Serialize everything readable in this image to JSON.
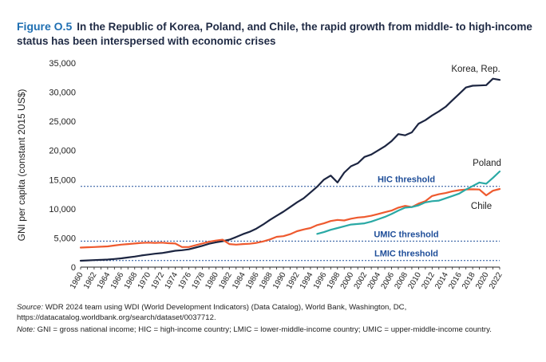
{
  "figure": {
    "label": "Figure O.5",
    "title": "In the Republic of Korea, Poland, and Chile, the rapid growth from middle- to high-income status has been interspersed with economic crises"
  },
  "colors": {
    "korea": "#1c2541",
    "chile": "#ee5a2f",
    "poland": "#2aa9a5",
    "threshold": "#1f4e99",
    "title_accent": "#1f6fb2"
  },
  "chart_data": {
    "type": "line",
    "ylabel": "GNI per capita (constant 2015 US$)",
    "xlabel": "",
    "ylim": [
      0,
      35000
    ],
    "yticks": [
      "0",
      "5,000",
      "10,000",
      "15,000",
      "20,000",
      "25,000",
      "30,000",
      "35,000"
    ],
    "x": [
      1960,
      1961,
      1962,
      1963,
      1964,
      1965,
      1966,
      1967,
      1968,
      1969,
      1970,
      1971,
      1972,
      1973,
      1974,
      1975,
      1976,
      1977,
      1978,
      1979,
      1980,
      1981,
      1982,
      1983,
      1984,
      1985,
      1986,
      1987,
      1988,
      1989,
      1990,
      1991,
      1992,
      1993,
      1994,
      1995,
      1996,
      1997,
      1998,
      1999,
      2000,
      2001,
      2002,
      2003,
      2004,
      2005,
      2006,
      2007,
      2008,
      2009,
      2010,
      2011,
      2012,
      2013,
      2014,
      2015,
      2016,
      2017,
      2018,
      2019,
      2020,
      2021,
      2022
    ],
    "xticks": [
      "1960",
      "1962",
      "1964",
      "1966",
      "1968",
      "1970",
      "1972",
      "1974",
      "1976",
      "1978",
      "1980",
      "1982",
      "1984",
      "1986",
      "1988",
      "1990",
      "1992",
      "1994",
      "1996",
      "1998",
      "2000",
      "2002",
      "2004",
      "2006",
      "2008",
      "2010",
      "2012",
      "2014",
      "2016",
      "2018",
      "2020",
      "2022"
    ],
    "series": [
      {
        "name": "Korea, Rep.",
        "color_key": "korea",
        "values": [
          1100,
          1150,
          1200,
          1250,
          1300,
          1400,
          1500,
          1650,
          1800,
          2000,
          2150,
          2300,
          2400,
          2600,
          2800,
          2900,
          3050,
          3350,
          3650,
          4000,
          4250,
          4450,
          4700,
          5150,
          5650,
          6050,
          6600,
          7300,
          8100,
          8800,
          9500,
          10300,
          11100,
          11800,
          12800,
          13800,
          15000,
          15700,
          14500,
          16200,
          17300,
          17800,
          18900,
          19300,
          20000,
          20700,
          21600,
          22800,
          22600,
          23100,
          24600,
          25200,
          26000,
          26700,
          27500,
          28600,
          29700,
          30800,
          31100,
          31150,
          31200,
          32300,
          32100
        ]
      },
      {
        "name": "Chile",
        "color_key": "chile",
        "values": [
          3350,
          3400,
          3450,
          3500,
          3550,
          3700,
          3850,
          3950,
          4050,
          4150,
          4200,
          4150,
          4200,
          4100,
          4050,
          3450,
          3450,
          3750,
          4050,
          4350,
          4550,
          4700,
          3950,
          3850,
          3950,
          4000,
          4150,
          4400,
          4750,
          5200,
          5300,
          5650,
          6150,
          6450,
          6700,
          7200,
          7500,
          7900,
          8100,
          8000,
          8300,
          8500,
          8600,
          8800,
          9100,
          9400,
          9700,
          10200,
          10500,
          10300,
          10900,
          11300,
          12200,
          12500,
          12700,
          13000,
          13200,
          13300,
          13350,
          13300,
          12300,
          13100,
          13400
        ]
      },
      {
        "name": "Poland",
        "color_key": "poland",
        "values": [
          null,
          null,
          null,
          null,
          null,
          null,
          null,
          null,
          null,
          null,
          null,
          null,
          null,
          null,
          null,
          null,
          null,
          null,
          null,
          null,
          null,
          null,
          null,
          null,
          null,
          null,
          null,
          null,
          null,
          null,
          null,
          null,
          null,
          null,
          null,
          5700,
          6000,
          6400,
          6700,
          7000,
          7300,
          7400,
          7500,
          7800,
          8200,
          8600,
          9100,
          9700,
          10200,
          10300,
          10600,
          11100,
          11300,
          11400,
          11800,
          12200,
          12600,
          13300,
          13900,
          14500,
          14300,
          15300,
          16400
        ]
      }
    ],
    "thresholds": [
      {
        "label": "HIC threshold",
        "value": 13845
      },
      {
        "label": "UMIC threshold",
        "value": 4466
      },
      {
        "label": "LMIC threshold",
        "value": 1136
      }
    ]
  },
  "footnotes": {
    "source_label": "Source:",
    "source_text": "WDR 2024 team using WDI (World Development Indicators) (Data Catalog), World Bank, Washington, DC, https://datacatalog.worldbank.org/search/dataset/0037712.",
    "note_label": "Note:",
    "note_text": "GNI = gross national income; HIC = high-income country; LMIC = lower-middle-income country; UMIC = upper-middle-income country."
  }
}
